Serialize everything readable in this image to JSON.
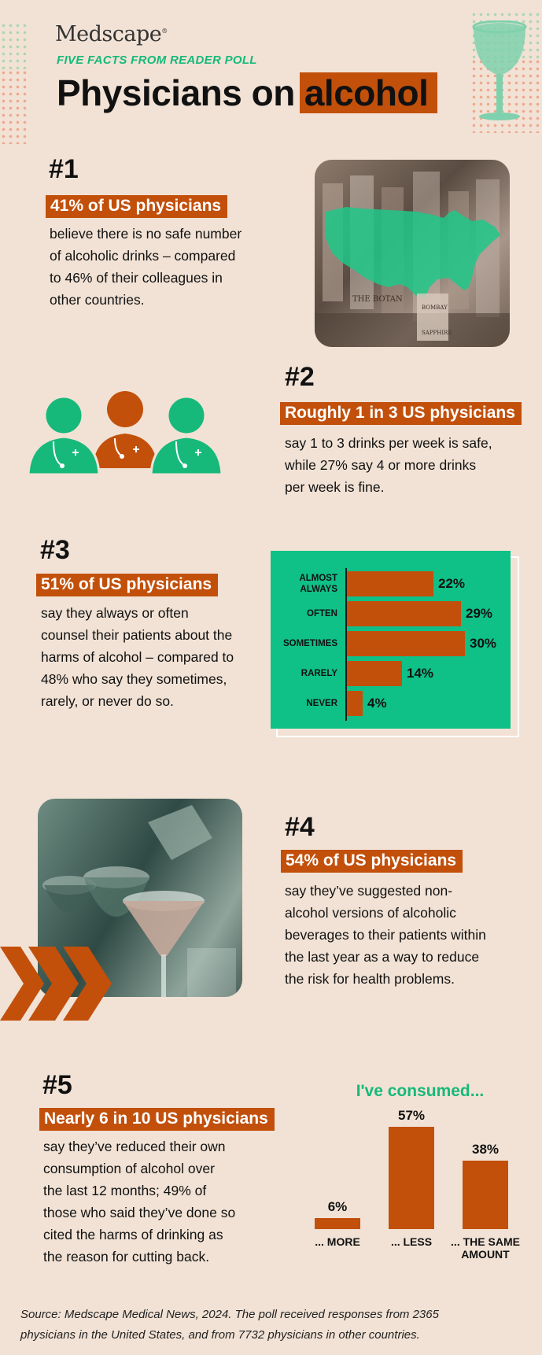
{
  "header": {
    "logo": "Medscape",
    "kicker": "FIVE FACTS FROM READER POLL",
    "title_plain": "Physicians on",
    "title_highlight": "alcohol"
  },
  "colors": {
    "accent": "#c2500b",
    "green": "#16b97a",
    "background": "#f1e2d5"
  },
  "facts": [
    {
      "number": "#1",
      "tag": "41% of US physicians",
      "lines": [
        "believe there is no safe number",
        "of alcoholic drinks – compared",
        "to 46% of their colleagues in",
        "other countries."
      ]
    },
    {
      "number": "#2",
      "tag": "Roughly 1 in 3 US physicians",
      "lines": [
        "say 1 to 3 drinks per week is safe,",
        "while 27% say 4 or more drinks",
        "per week is fine."
      ]
    },
    {
      "number": "#3",
      "tag": "51% of US physicians",
      "lines": [
        "say they always or often",
        "counsel their patients about the",
        "harms of alcohol – compared to",
        "48% who say they sometimes,",
        "rarely, or never do so."
      ]
    },
    {
      "number": "#4",
      "tag": "54% of US physicians",
      "lines": [
        "say they’ve suggested non-",
        "alcohol versions of alcoholic",
        "beverages to their patients within",
        "the last year as a way to reduce",
        "the risk for health problems."
      ]
    },
    {
      "number": "#5",
      "tag": "Nearly 6 in 10 US physicians",
      "lines": [
        "say they’ve reduced their own",
        "consumption of alcohol over",
        "the last 12 months; 49% of",
        "those who said they’ve done so",
        "cited the harms of drinking as",
        "the reason for cutting back."
      ]
    }
  ],
  "photo_text": {
    "bottle_left": "THE BOTAN",
    "bottle_right_1": "BOMBAY",
    "bottle_right_2": "SAPPHIRE"
  },
  "chart_data": [
    {
      "type": "bar",
      "orientation": "horizontal",
      "categories": [
        "ALMOST ALWAYS",
        "OFTEN",
        "SOMETIMES",
        "RARELY",
        "NEVER"
      ],
      "category_lines": [
        [
          "ALMOST",
          "ALWAYS"
        ],
        [
          "OFTEN"
        ],
        [
          "SOMETIMES"
        ],
        [
          "RARELY"
        ],
        [
          "NEVER"
        ]
      ],
      "values": [
        22,
        29,
        30,
        14,
        4
      ],
      "value_labels": [
        "22%",
        "29%",
        "30%",
        "14%",
        "4%"
      ],
      "xlim": [
        0,
        30
      ],
      "grid": false
    },
    {
      "type": "bar",
      "orientation": "vertical",
      "title": "I've consumed...",
      "categories": [
        "... MORE",
        "... LESS",
        "... THE SAME AMOUNT"
      ],
      "category_lines": [
        [
          "... MORE"
        ],
        [
          "... LESS"
        ],
        [
          "... THE SAME",
          "AMOUNT"
        ]
      ],
      "values": [
        6,
        57,
        38
      ],
      "value_labels": [
        "6%",
        "57%",
        "38%"
      ],
      "ylim": [
        0,
        57
      ],
      "grid": false
    }
  ],
  "source_lines": [
    "Source: Medscape Medical News, 2024. The poll received responses from 2365",
    "physicians in the United States, and from 7732  physicians in other countries."
  ]
}
